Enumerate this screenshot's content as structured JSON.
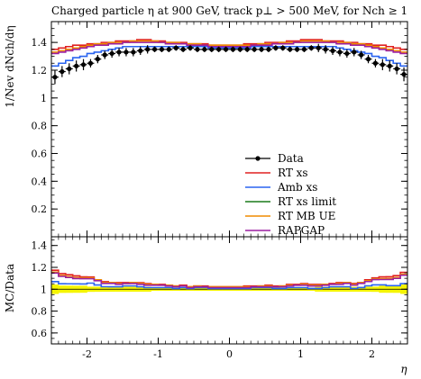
{
  "chart_data": {
    "type": "line",
    "title": "Charged particle η at 900 GeV, track p⊥ > 500 MeV, for Nch ≥ 1",
    "colors": {
      "Data": "#000000",
      "RT xs": "#e02020",
      "Amb xs": "#2a64f0",
      "RT xs limit": "#1a7a1a",
      "RT MB UE": "#f08c00",
      "RAPGAP": "#9b1fa0",
      "ratio_band": "#f5f500"
    },
    "legend_position": "inside-lower-right",
    "main_panel": {
      "ylabel": "1/Nev dNch/dη",
      "ylim": [
        0,
        1.55
      ],
      "yticks": [
        {
          "value": 0.2,
          "label": "0.2"
        },
        {
          "value": 0.4,
          "label": "0.4"
        },
        {
          "value": 0.6,
          "label": "0.6"
        },
        {
          "value": 0.8,
          "label": "0.8"
        },
        {
          "value": 1.0,
          "label": "1"
        },
        {
          "value": 1.2,
          "label": "1.2"
        },
        {
          "value": 1.4,
          "label": "1.4"
        }
      ]
    },
    "ratio_panel": {
      "ylabel": "MC/Data",
      "ylim": [
        0.5,
        1.48
      ],
      "yticks": [
        {
          "value": 0.6,
          "label": "0.6"
        },
        {
          "value": 0.8,
          "label": "0.8"
        },
        {
          "value": 1.0,
          "label": "1"
        },
        {
          "value": 1.2,
          "label": "1.2"
        },
        {
          "value": 1.4,
          "label": "1.4"
        }
      ]
    },
    "xlabel": "η",
    "xlim": [
      -2.5,
      2.5
    ],
    "xticks": [
      {
        "value": -2,
        "label": "-2"
      },
      {
        "value": -1,
        "label": "-1"
      },
      {
        "value": 0,
        "label": "0"
      },
      {
        "value": 1,
        "label": "1"
      },
      {
        "value": 2,
        "label": "2"
      }
    ],
    "bin_edges": [
      -2.5,
      -2.4,
      -2.3,
      -2.2,
      -2.1,
      -2.0,
      -1.9,
      -1.8,
      -1.7,
      -1.6,
      -1.5,
      -1.4,
      -1.3,
      -1.2,
      -1.1,
      -1.0,
      -0.9,
      -0.8,
      -0.7,
      -0.6,
      -0.5,
      -0.4,
      -0.3,
      -0.2,
      -0.1,
      0.0,
      0.1,
      0.2,
      0.3,
      0.4,
      0.5,
      0.6,
      0.7,
      0.8,
      0.9,
      1.0,
      1.1,
      1.2,
      1.3,
      1.4,
      1.5,
      1.6,
      1.7,
      1.8,
      1.9,
      2.0,
      2.1,
      2.2,
      2.3,
      2.4,
      2.5
    ],
    "data": {
      "name": "Data",
      "values": [
        1.15,
        1.19,
        1.21,
        1.23,
        1.24,
        1.25,
        1.28,
        1.31,
        1.32,
        1.33,
        1.33,
        1.33,
        1.34,
        1.35,
        1.35,
        1.35,
        1.35,
        1.36,
        1.35,
        1.36,
        1.35,
        1.35,
        1.35,
        1.35,
        1.35,
        1.35,
        1.35,
        1.35,
        1.35,
        1.35,
        1.35,
        1.36,
        1.36,
        1.35,
        1.35,
        1.35,
        1.36,
        1.36,
        1.35,
        1.34,
        1.33,
        1.32,
        1.33,
        1.31,
        1.28,
        1.25,
        1.24,
        1.23,
        1.21,
        1.17
      ],
      "errors": [
        0.05,
        0.04,
        0.04,
        0.04,
        0.04,
        0.03,
        0.03,
        0.03,
        0.03,
        0.03,
        0.03,
        0.03,
        0.03,
        0.03,
        0.02,
        0.02,
        0.02,
        0.02,
        0.02,
        0.02,
        0.02,
        0.02,
        0.02,
        0.02,
        0.02,
        0.02,
        0.02,
        0.02,
        0.02,
        0.02,
        0.02,
        0.02,
        0.02,
        0.02,
        0.02,
        0.02,
        0.02,
        0.03,
        0.03,
        0.03,
        0.03,
        0.03,
        0.03,
        0.03,
        0.03,
        0.03,
        0.04,
        0.04,
        0.04,
        0.05
      ]
    },
    "series": [
      {
        "name": "RT xs",
        "values": [
          1.35,
          1.36,
          1.37,
          1.38,
          1.38,
          1.39,
          1.39,
          1.4,
          1.4,
          1.41,
          1.41,
          1.41,
          1.42,
          1.42,
          1.41,
          1.41,
          1.4,
          1.4,
          1.4,
          1.39,
          1.39,
          1.39,
          1.38,
          1.38,
          1.38,
          1.38,
          1.38,
          1.39,
          1.39,
          1.39,
          1.4,
          1.4,
          1.4,
          1.41,
          1.41,
          1.42,
          1.42,
          1.42,
          1.41,
          1.41,
          1.41,
          1.4,
          1.4,
          1.39,
          1.39,
          1.38,
          1.38,
          1.37,
          1.36,
          1.35
        ]
      },
      {
        "name": "Amb xs",
        "values": [
          1.23,
          1.25,
          1.27,
          1.29,
          1.3,
          1.32,
          1.33,
          1.34,
          1.35,
          1.36,
          1.37,
          1.37,
          1.37,
          1.37,
          1.37,
          1.37,
          1.37,
          1.37,
          1.37,
          1.37,
          1.37,
          1.37,
          1.36,
          1.36,
          1.36,
          1.36,
          1.36,
          1.36,
          1.37,
          1.37,
          1.37,
          1.37,
          1.37,
          1.37,
          1.37,
          1.37,
          1.37,
          1.37,
          1.37,
          1.37,
          1.36,
          1.35,
          1.34,
          1.33,
          1.32,
          1.3,
          1.29,
          1.27,
          1.25,
          1.23
        ]
      },
      {
        "name": "RT xs limit",
        "values": []
      },
      {
        "name": "RT MB UE",
        "values": [
          1.33,
          1.34,
          1.35,
          1.36,
          1.37,
          1.38,
          1.39,
          1.39,
          1.4,
          1.4,
          1.4,
          1.41,
          1.41,
          1.41,
          1.41,
          1.4,
          1.4,
          1.4,
          1.39,
          1.39,
          1.39,
          1.38,
          1.38,
          1.38,
          1.38,
          1.38,
          1.38,
          1.38,
          1.38,
          1.39,
          1.39,
          1.39,
          1.4,
          1.4,
          1.4,
          1.41,
          1.41,
          1.41,
          1.41,
          1.4,
          1.4,
          1.4,
          1.39,
          1.39,
          1.38,
          1.37,
          1.36,
          1.35,
          1.34,
          1.33
        ]
      },
      {
        "name": "RAPGAP",
        "values": [
          1.32,
          1.33,
          1.34,
          1.35,
          1.36,
          1.37,
          1.38,
          1.38,
          1.39,
          1.39,
          1.4,
          1.4,
          1.4,
          1.4,
          1.4,
          1.4,
          1.39,
          1.39,
          1.39,
          1.38,
          1.38,
          1.38,
          1.37,
          1.37,
          1.37,
          1.37,
          1.37,
          1.37,
          1.38,
          1.38,
          1.38,
          1.39,
          1.39,
          1.39,
          1.4,
          1.4,
          1.4,
          1.4,
          1.4,
          1.4,
          1.39,
          1.39,
          1.38,
          1.38,
          1.37,
          1.36,
          1.35,
          1.34,
          1.33,
          1.32
        ]
      }
    ]
  }
}
